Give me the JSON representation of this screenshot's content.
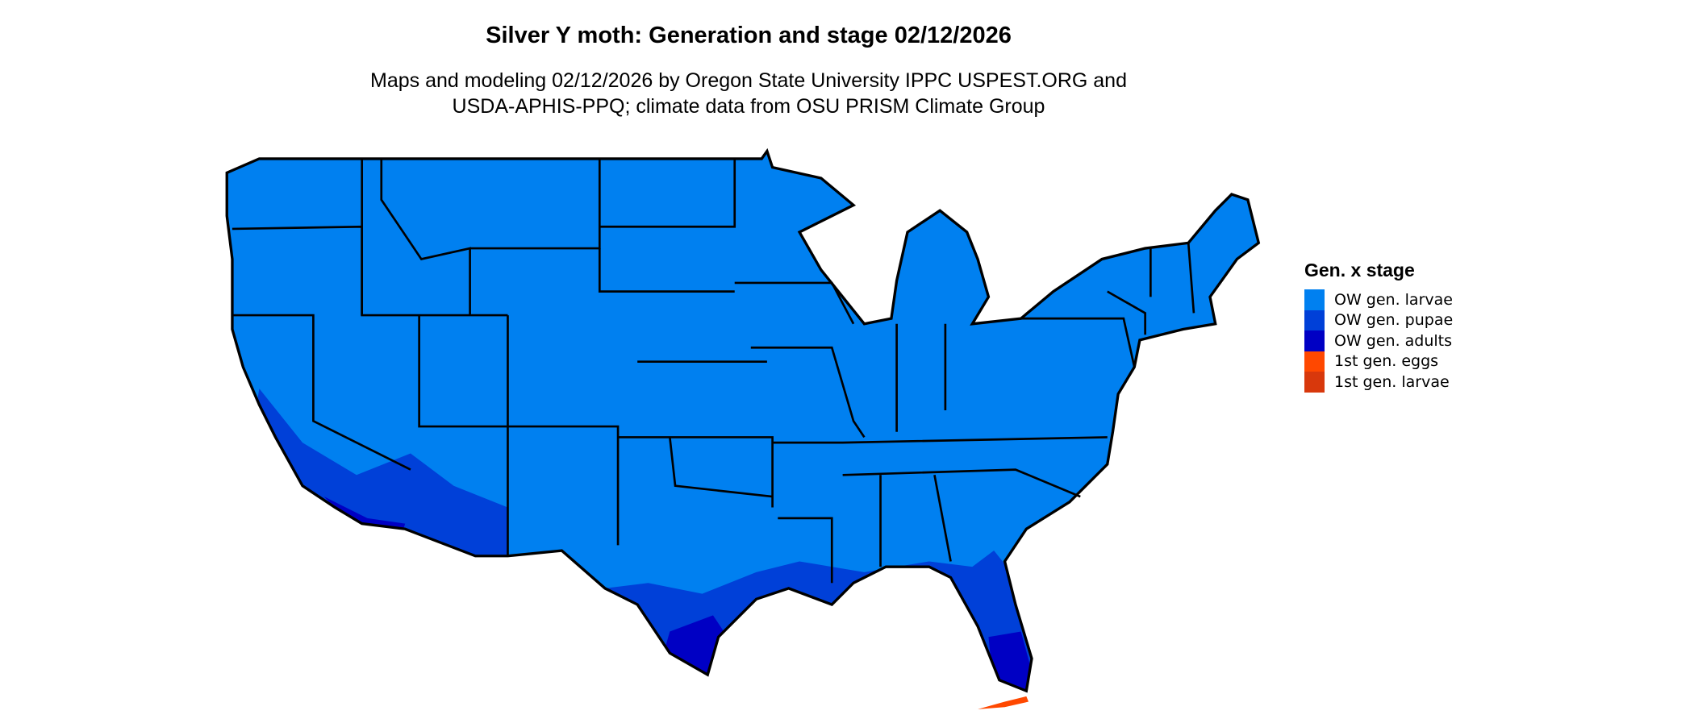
{
  "header": {
    "title": "Silver Y moth: Generation and stage 02/12/2026",
    "subtitle_line1": "Maps and modeling 02/12/2026 by Oregon State University IPPC USPEST.ORG and",
    "subtitle_line2": "USDA-APHIS-PPQ; climate data from OSU PRISM Climate Group"
  },
  "legend": {
    "title": "Gen. x stage",
    "items": [
      {
        "label": "OW gen. larvae",
        "color": "#0080f0"
      },
      {
        "label": "OW gen. pupae",
        "color": "#0040d8"
      },
      {
        "label": "OW gen. adults",
        "color": "#0000c4"
      },
      {
        "label": "1st gen. eggs",
        "color": "#ff4800"
      },
      {
        "label": "1st gen. larvae",
        "color": "#d8380c"
      }
    ]
  },
  "map": {
    "region": "Contiguous United States",
    "border_color": "#000000"
  }
}
